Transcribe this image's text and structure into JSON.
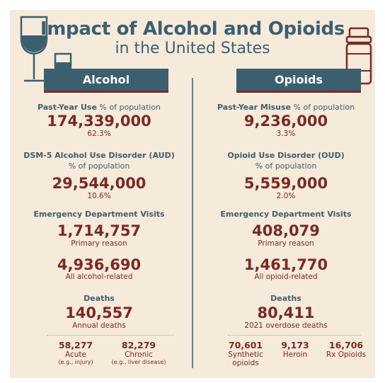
{
  "title": {
    "line1": "Impact of Alcohol and Opioids",
    "line2": "in the United States"
  },
  "icons": {
    "left": "wine-glass-and-tumbler-icon",
    "right": "pill-bottle-icon"
  },
  "colors": {
    "background": "#f6eadb",
    "navy": "#3c5f70",
    "maroon": "#7a2a25"
  },
  "alcohol": {
    "banner": "Alcohol",
    "use": {
      "heading_bold": "Past-Year Use",
      "heading_rest": " % of population",
      "value": "174,339,000",
      "pct": "62.3%"
    },
    "disorder": {
      "heading": "DSM-5 Alcohol Use Disorder (AUD)",
      "sub": "% of population",
      "value": "29,544,000",
      "pct": "10.6%"
    },
    "ed": {
      "heading": "Emergency Department Visits",
      "primary_value": "1,714,757",
      "primary_label": "Primary reason",
      "related_value": "4,936,690",
      "related_label": "All alcohol-related"
    },
    "deaths": {
      "heading": "Deaths",
      "value": "140,557",
      "label": "Annual deaths",
      "breakdown": [
        {
          "value": "58,277",
          "label": "Acute",
          "note": "(e.g., injury)"
        },
        {
          "value": "82,279",
          "label": "Chronic",
          "note": "(e.g., liver disease)"
        }
      ]
    }
  },
  "opioids": {
    "banner": "Opioids",
    "use": {
      "heading_bold": "Past-Year Misuse",
      "heading_rest": " % of population",
      "value": "9,236,000",
      "pct": "3.3%"
    },
    "disorder": {
      "heading": "Opioid Use Disorder (OUD)",
      "sub": "% of population",
      "value": "5,559,000",
      "pct": "2.0%"
    },
    "ed": {
      "heading": "Emergency Department Visits",
      "primary_value": "408,079",
      "primary_label": "Primary reason",
      "related_value": "1,461,770",
      "related_label": "All opioid-related"
    },
    "deaths": {
      "heading": "Deaths",
      "value": "80,411",
      "label": "2021 overdose deaths",
      "breakdown": [
        {
          "value": "70,601",
          "label": "Synthetic",
          "label2": "opioids"
        },
        {
          "value": "9,173",
          "label": "Heroin"
        },
        {
          "value": "16,706",
          "label": "Rx Opioids"
        }
      ]
    }
  }
}
